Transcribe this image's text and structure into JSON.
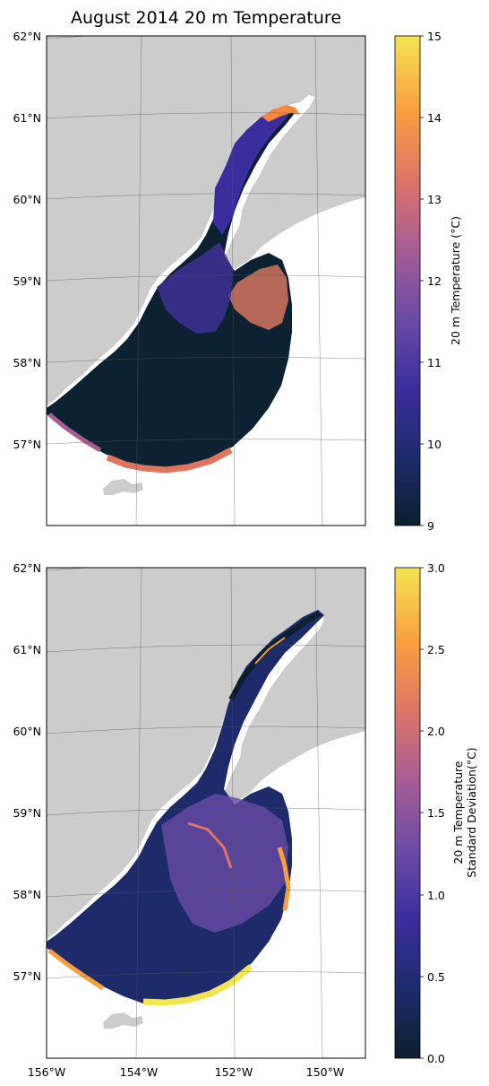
{
  "title": "August 2014 20 m Temperature",
  "colors": {
    "land": "#cccccc",
    "water_unsampled": "#ffffff",
    "frame": "#000000",
    "grid": "#666666"
  },
  "latitude_labels": [
    "62°N",
    "61°N",
    "60°N",
    "59°N",
    "58°N",
    "57°N"
  ],
  "longitude_labels": [
    "156°W",
    "154°W",
    "152°W",
    "150°W"
  ],
  "panels": [
    {
      "id": "temperature",
      "colorbar": {
        "label": "20 m Temperature (°C)",
        "ticks": [
          "15",
          "14",
          "13",
          "12",
          "11",
          "10",
          "9"
        ],
        "min": 9,
        "max": 15,
        "colormap": [
          "#0b1f2e",
          "#1d2b6b",
          "#3a2d9d",
          "#6a4ba6",
          "#a85d93",
          "#e07567",
          "#f99f3f",
          "#f3e451"
        ]
      }
    },
    {
      "id": "std_dev",
      "colorbar": {
        "label_line1": "20 m Temperature",
        "label_line2": "Standard Deviation(°C)",
        "ticks": [
          "3.0",
          "2.5",
          "2.0",
          "1.5",
          "1.0",
          "0.5",
          "0.0"
        ],
        "min": 0,
        "max": 3,
        "colormap": [
          "#0b1f2e",
          "#1d2b6b",
          "#3a2d9d",
          "#6a4ba6",
          "#a85d93",
          "#e07567",
          "#f99f3f",
          "#f3e451"
        ]
      }
    }
  ]
}
